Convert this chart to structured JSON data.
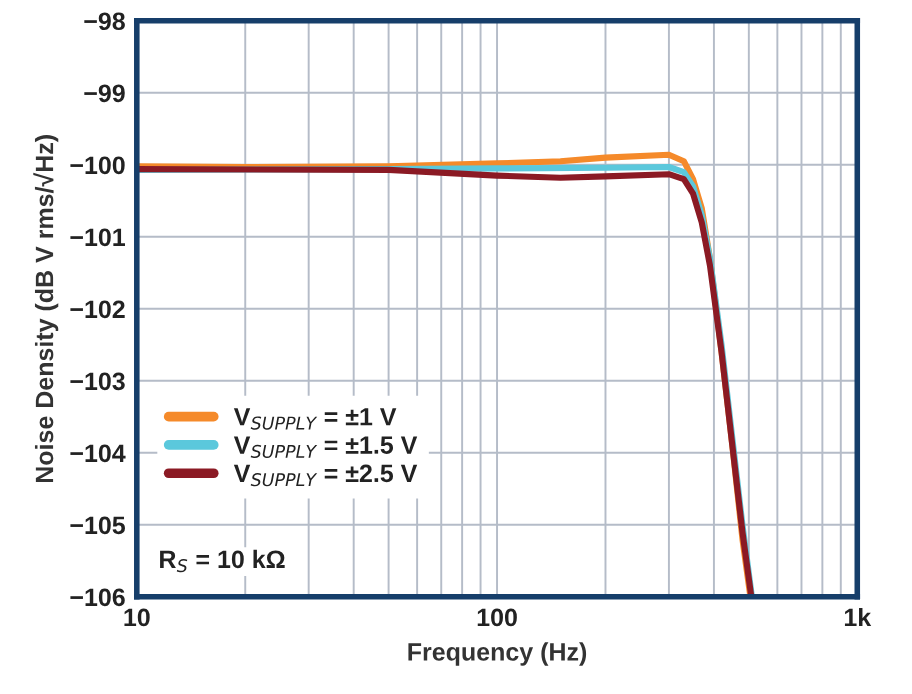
{
  "chart_data": {
    "type": "line",
    "xlabel": "Frequency (Hz)",
    "ylabel": "Noise Density (dB V rms/√Hz)",
    "log": "x",
    "xlim": [
      10,
      1000
    ],
    "ylim": [
      -106,
      -98
    ],
    "xticks": [
      10,
      {
        "value": 20,
        "label": null
      },
      {
        "value": 30,
        "label": null
      },
      {
        "value": 40,
        "label": null
      },
      {
        "value": 50,
        "label": null
      },
      {
        "value": 60,
        "label": null
      },
      {
        "value": 70,
        "label": null
      },
      {
        "value": 80,
        "label": null
      },
      {
        "value": 90,
        "label": null
      },
      100,
      {
        "value": 200,
        "label": null
      },
      {
        "value": 300,
        "label": null
      },
      {
        "value": 400,
        "label": null
      },
      {
        "value": 500,
        "label": null
      },
      {
        "value": 600,
        "label": null
      },
      {
        "value": 700,
        "label": null
      },
      {
        "value": 800,
        "label": null
      },
      {
        "value": 900,
        "label": null
      },
      {
        "value": 1000,
        "label": "1k"
      }
    ],
    "yticks": [
      {
        "value": -98,
        "label": "−98"
      },
      {
        "value": -99,
        "label": "−99"
      },
      {
        "value": -100,
        "label": "−100"
      },
      {
        "value": -101,
        "label": "−101"
      },
      {
        "value": -102,
        "label": "−102"
      },
      {
        "value": -103,
        "label": "−103"
      },
      {
        "value": -104,
        "label": "−104"
      },
      {
        "value": -105,
        "label": "−105"
      },
      {
        "value": -106,
        "label": "−106"
      }
    ],
    "grid": true,
    "legend": "bottom left",
    "annotations": [
      "R$_{S}$ = 10 kΩ"
    ],
    "series": [
      {
        "name": "V$_{SUPPLY}$ = ±1 V",
        "color": "#f58a2a",
        "x": [
          10,
          20,
          50,
          100,
          150,
          200,
          300,
          330,
          350,
          370,
          390,
          420,
          450,
          480,
          505
        ],
        "values": [
          -100.02,
          -100.03,
          -100.02,
          -99.98,
          -99.95,
          -99.9,
          -99.86,
          -99.95,
          -100.2,
          -100.6,
          -101.3,
          -102.6,
          -103.9,
          -105.2,
          -106
        ]
      },
      {
        "name": "V$_{SUPPLY}$ = ±1.5 V",
        "color": "#5bc8dc",
        "x": [
          10,
          50,
          100,
          200,
          300,
          330,
          350,
          370,
          390,
          420,
          450,
          480,
          510
        ],
        "values": [
          -100.07,
          -100.06,
          -100.05,
          -100.04,
          -100.03,
          -100.1,
          -100.3,
          -100.7,
          -101.3,
          -102.5,
          -103.8,
          -105.0,
          -106
        ]
      },
      {
        "name": "V$_{SUPPLY}$ = ±2.5 V",
        "color": "#8b1a24",
        "x": [
          10,
          50,
          100,
          150,
          200,
          300,
          330,
          350,
          370,
          390,
          420,
          450,
          480,
          508
        ],
        "values": [
          -100.06,
          -100.07,
          -100.15,
          -100.18,
          -100.16,
          -100.13,
          -100.2,
          -100.4,
          -100.8,
          -101.4,
          -102.6,
          -103.9,
          -105.1,
          -106
        ]
      }
    ]
  }
}
